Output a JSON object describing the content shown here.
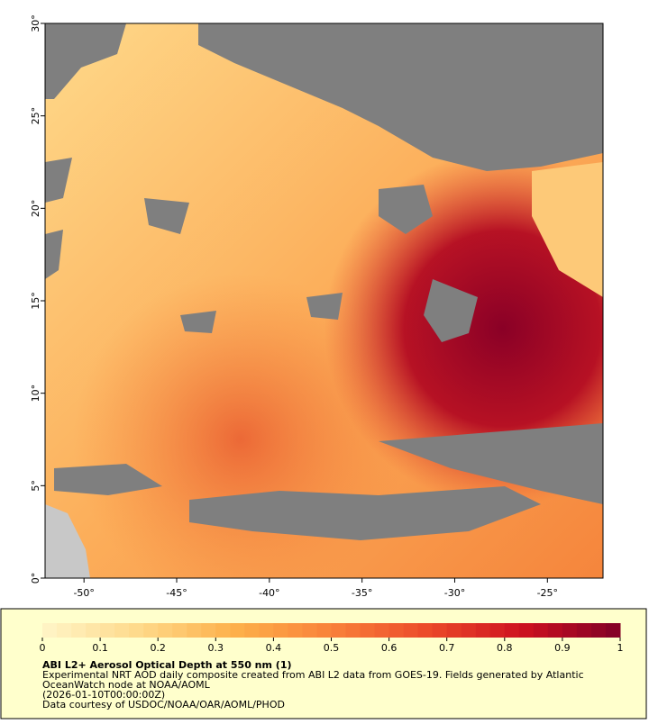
{
  "map": {
    "xlim": [
      -52.1,
      -22.0
    ],
    "ylim": [
      0,
      30
    ],
    "xticks": [
      {
        "value": -50,
        "label": "-50°"
      },
      {
        "value": -45,
        "label": "-45°"
      },
      {
        "value": -40,
        "label": "-40°"
      },
      {
        "value": -35,
        "label": "-35°"
      },
      {
        "value": -30,
        "label": "-30°"
      },
      {
        "value": -25,
        "label": "-25°"
      }
    ],
    "yticks": [
      {
        "value": 0,
        "label": "0°"
      },
      {
        "value": 5,
        "label": "5°"
      },
      {
        "value": 10,
        "label": "10°"
      },
      {
        "value": 15,
        "label": "15°"
      },
      {
        "value": 20,
        "label": "20°"
      },
      {
        "value": 25,
        "label": "25°"
      },
      {
        "value": 30,
        "label": "30°"
      }
    ]
  },
  "colorbar": {
    "lim": [
      0,
      1
    ],
    "ticks": [
      0,
      0.1,
      0.2,
      0.3,
      0.4,
      0.5,
      0.6,
      0.7,
      0.8,
      0.9,
      1
    ],
    "colors": [
      "#fff5c8",
      "#fed98a",
      "#fdb04a",
      "#f9813a",
      "#ec4a2a",
      "#cd1120",
      "#800026"
    ]
  },
  "legend": {
    "title": "ABI L2+ Aerosol Optical Depth at 550 nm (1)",
    "lines": [
      "Experimental NRT AOD daily composite created from ABI L2 data from GOES-19. Fields generated by Atlantic",
      "OceanWatch node at NOAA/AOML",
      "(2026-01-10T00:00:00Z)",
      "Data courtesy of USDOC/NOAA/OAR/AOML/PHOD"
    ]
  }
}
